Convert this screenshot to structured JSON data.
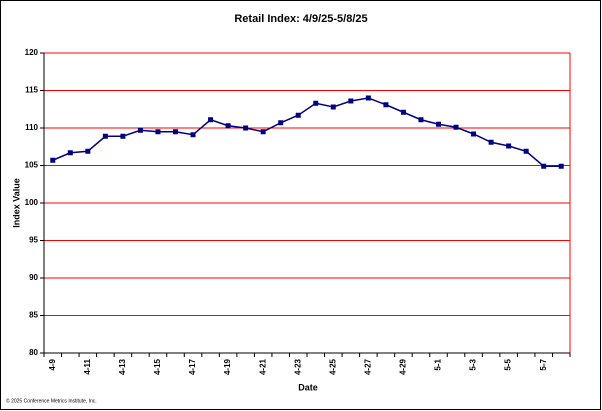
{
  "chart_data": {
    "type": "line",
    "title": "Retail Index: 4/9/25-5/8/25",
    "x_label": "Date",
    "y_label": "Index Value",
    "footnote": "© 2025 Conference Metrics Institute, Inc.",
    "categories": [
      "4-9",
      null,
      "4-11",
      null,
      "4-13",
      null,
      "4-15",
      null,
      "4-17",
      null,
      "4-19",
      null,
      "4-21",
      null,
      "4-23",
      null,
      "4-25",
      null,
      "4-27",
      null,
      "4-29",
      null,
      "5-1",
      null,
      "5-3",
      null,
      "5-5",
      null,
      "5-7",
      null
    ],
    "values": [
      105.7,
      106.7,
      106.9,
      108.9,
      108.9,
      109.7,
      109.5,
      109.5,
      109.1,
      111.1,
      110.3,
      110.0,
      109.5,
      110.7,
      111.7,
      113.3,
      112.8,
      113.6,
      114.0,
      113.1,
      112.1,
      111.1,
      110.5,
      110.1,
      109.2,
      108.1,
      107.6,
      106.9,
      104.9,
      104.9
    ],
    "color": "#000080",
    "grid_color": "#ff0000",
    "ylim": [
      80,
      120
    ],
    "yticks": [
      80,
      85,
      90,
      95,
      100,
      105,
      110,
      115,
      120
    ],
    "grid": true
  }
}
